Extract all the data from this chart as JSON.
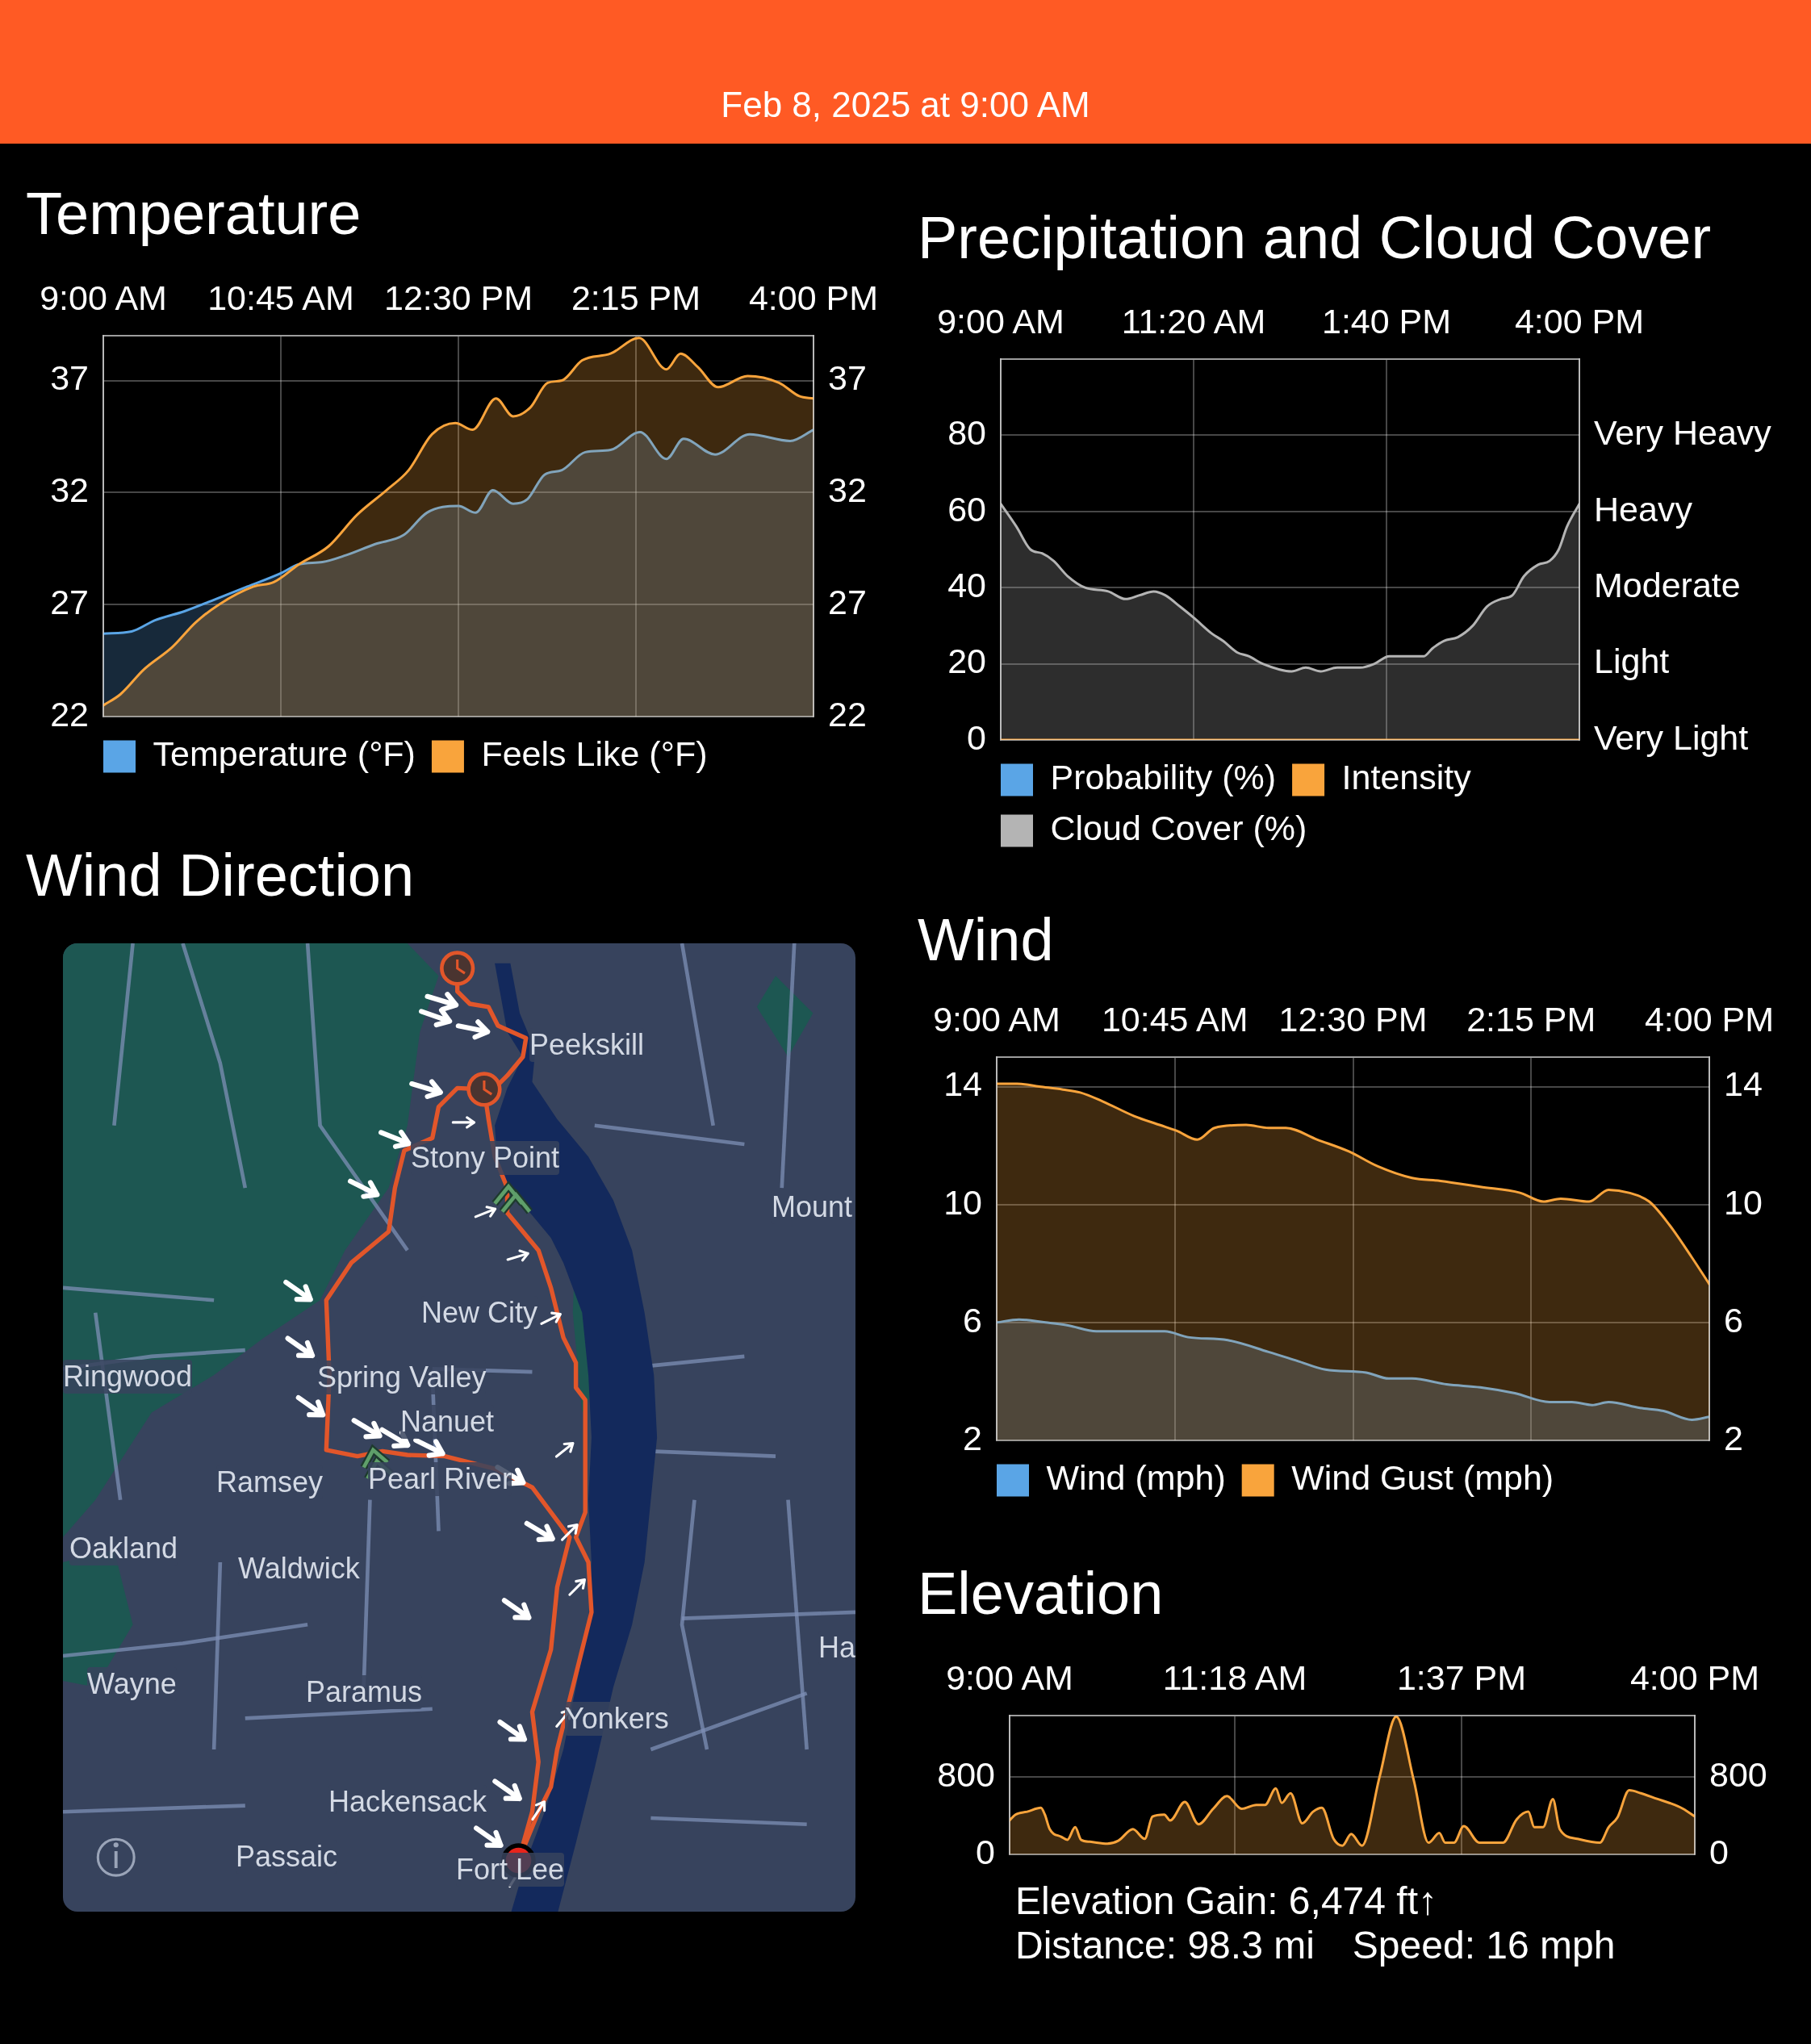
{
  "chart_data": [
    {
      "type": "area",
      "title": "Temperature",
      "subtitle": "Feb 8, 2025 at 9:00 AM",
      "xlim": [
        9,
        16
      ],
      "xticks": [
        {
          "value": 9,
          "label": "9:00 AM"
        },
        {
          "value": 10.75,
          "label": "10:45 AM"
        },
        {
          "value": 12.5,
          "label": "12:30 PM"
        },
        {
          "value": 14.25,
          "label": "2:15 PM"
        },
        {
          "value": 16,
          "label": "4:00 PM"
        }
      ],
      "ylim": [
        22,
        39
      ],
      "yticks": [
        22,
        27,
        32,
        37
      ],
      "y2lim": [
        22,
        39
      ],
      "y2ticks": [
        22,
        27,
        32,
        37
      ],
      "grid": true,
      "legend": "bottom",
      "series": [
        {
          "name": "Temperature (°F)",
          "color": "#5aa5e6",
          "x": [
            9,
            9.28,
            9.51,
            9.8,
            10.14,
            10.42,
            10.75,
            10.93,
            11.16,
            11.39,
            11.68,
            11.96,
            12.19,
            12.5,
            12.67,
            12.84,
            13.04,
            13.18,
            13.35,
            13.52,
            13.75,
            14,
            14.29,
            14.55,
            14.72,
            15.03,
            15.37,
            15.77,
            16
          ],
          "values": [
            25.7,
            25.8,
            26.3,
            26.7,
            27.3,
            27.8,
            28.4,
            28.8,
            28.9,
            29.2,
            29.7,
            30.1,
            31.1,
            31.4,
            31.1,
            32.1,
            31.5,
            31.7,
            32.8,
            33,
            33.8,
            33.9,
            34.7,
            33.5,
            34.4,
            33.7,
            34.6,
            34.3,
            34.8
          ]
        },
        {
          "name": "Feels Like (°F)",
          "color": "#f9a43c",
          "x": [
            9,
            9.17,
            9.4,
            9.68,
            9.91,
            10.14,
            10.48,
            10.68,
            10.93,
            11.22,
            11.5,
            11.79,
            12.01,
            12.24,
            12.47,
            12.64,
            12.87,
            13.04,
            13.21,
            13.38,
            13.52,
            13.72,
            14,
            14.28,
            14.55,
            14.69,
            14.86,
            15.06,
            15.35,
            15.66,
            15.86,
            16
          ],
          "values": [
            22.5,
            23,
            24.1,
            25.1,
            26.2,
            27,
            27.8,
            28,
            28.8,
            29.6,
            31,
            32.1,
            33,
            34.6,
            35.1,
            34.8,
            36.2,
            35.4,
            35.8,
            36.9,
            37,
            37.9,
            38.2,
            38.9,
            37.5,
            38.2,
            37.6,
            36.7,
            37.2,
            36.9,
            36.3,
            36.2
          ]
        }
      ]
    },
    {
      "type": "area",
      "title": "Precipitation and Cloud Cover",
      "xlim": [
        9,
        16
      ],
      "xticks": [
        {
          "value": 9,
          "label": "9:00 AM"
        },
        {
          "value": 11.333,
          "label": "11:20 AM"
        },
        {
          "value": 13.667,
          "label": "1:40 PM"
        },
        {
          "value": 16,
          "label": "4:00 PM"
        }
      ],
      "ylim": [
        0,
        100
      ],
      "yticks": [
        0,
        20,
        40,
        60,
        80
      ],
      "y2_categories": [
        null,
        "Very Heavy",
        "Heavy",
        "Moderate",
        "Light",
        "Very Light"
      ],
      "grid": true,
      "legend": "bottom",
      "series": [
        {
          "name": "Probability (%)",
          "type": "line",
          "color": "#5aa5e6"
        },
        {
          "name": "Intensity",
          "type": "line",
          "color": "#f9a43c",
          "x": [
            9,
            16
          ],
          "values": [
            0,
            0
          ]
        },
        {
          "name": "Cloud Cover (%)",
          "color": "#b4b4b4",
          "x": [
            9,
            9.19,
            9.36,
            9.5,
            9.64,
            9.81,
            10.02,
            10.3,
            10.51,
            10.68,
            10.85,
            10.99,
            11.17,
            11.34,
            11.55,
            11.69,
            11.86,
            12,
            12.17,
            12.52,
            12.69,
            12.87,
            13.07,
            13.35,
            13.52,
            13.7,
            13.91,
            14.12,
            14.22,
            14.36,
            14.53,
            14.71,
            14.88,
            15.05,
            15.19,
            15.33,
            15.5,
            15.64,
            15.75,
            15.85,
            16
          ],
          "values": [
            62,
            56,
            50,
            49,
            47,
            43,
            40,
            39,
            37,
            38,
            39,
            38,
            35,
            32,
            28,
            26,
            23,
            22,
            20,
            18,
            19,
            18,
            19,
            19,
            20,
            22,
            22,
            22,
            24,
            26,
            27,
            30,
            35,
            37,
            38,
            43,
            46,
            47,
            50,
            56,
            62
          ]
        }
      ]
    },
    {
      "type": "other",
      "title": "Wind Direction",
      "annotations": [
        "Peekskill",
        "Stony Point",
        "Mount",
        "New City",
        "Ringwood",
        "Spring Valley",
        "Nanuet",
        "Ramsey",
        "Pearl River",
        "Oakland",
        "Waldwick",
        "Ha",
        "Wayne",
        "Paramus",
        "Yonkers",
        "Hackensack",
        "Passaic",
        "Fort Lee"
      ]
    },
    {
      "type": "area",
      "title": "Wind",
      "xlim": [
        9,
        16
      ],
      "xticks": [
        {
          "value": 9,
          "label": "9:00 AM"
        },
        {
          "value": 10.75,
          "label": "10:45 AM"
        },
        {
          "value": 12.5,
          "label": "12:30 PM"
        },
        {
          "value": 14.25,
          "label": "2:15 PM"
        },
        {
          "value": 16,
          "label": "4:00 PM"
        }
      ],
      "ylim": [
        2,
        15
      ],
      "yticks": [
        2,
        6,
        10,
        14
      ],
      "y2lim": [
        2,
        15
      ],
      "y2ticks": [
        2,
        6,
        10,
        14
      ],
      "grid": true,
      "legend": "bottom",
      "series": [
        {
          "name": "Wind (mph)",
          "color": "#5aa5e6",
          "x": [
            9,
            9.22,
            9.48,
            9.7,
            9.98,
            10.43,
            10.65,
            10.88,
            11.27,
            11.67,
            11.95,
            12.23,
            12.63,
            12.85,
            13.08,
            13.42,
            13.75,
            14.09,
            14.43,
            14.65,
            14.85,
            15.01,
            15.32,
            15.55,
            15.83,
            16
          ],
          "values": [
            6,
            6.1,
            6,
            5.9,
            5.7,
            5.7,
            5.7,
            5.5,
            5.4,
            5,
            4.7,
            4.4,
            4.3,
            4.1,
            4.1,
            3.9,
            3.8,
            3.6,
            3.3,
            3.3,
            3.2,
            3.3,
            3.1,
            3,
            2.7,
            2.8
          ]
        },
        {
          "name": "Wind Gust (mph)",
          "color": "#f9a43c",
          "x": [
            9,
            9.2,
            9.42,
            9.65,
            9.82,
            10.04,
            10.35,
            10.6,
            10.77,
            10.97,
            11.14,
            11.45,
            11.67,
            11.84,
            12.15,
            12.46,
            12.74,
            13.08,
            13.36,
            13.75,
            14.14,
            14.37,
            14.54,
            14.82,
            15.01,
            15.21,
            15.41,
            15.61,
            15.83,
            16
          ],
          "values": [
            14.1,
            14.1,
            14,
            13.9,
            13.8,
            13.5,
            13,
            12.7,
            12.5,
            12.2,
            12.6,
            12.7,
            12.6,
            12.6,
            12.2,
            11.8,
            11.3,
            10.9,
            10.8,
            10.6,
            10.4,
            10.1,
            10.2,
            10.1,
            10.5,
            10.4,
            10.1,
            9.3,
            8.2,
            7.3
          ]
        }
      ]
    },
    {
      "type": "area",
      "title": "Elevation",
      "xlim": [
        9,
        16
      ],
      "xticks": [
        {
          "value": 9,
          "label": "9:00 AM"
        },
        {
          "value": 11.3,
          "label": "11:18 AM"
        },
        {
          "value": 13.617,
          "label": "1:37 PM"
        },
        {
          "value": 16,
          "label": "4:00 PM"
        }
      ],
      "ylim": [
        0,
        1430
      ],
      "yticks": [
        0,
        800
      ],
      "y2lim": [
        0,
        1430
      ],
      "y2ticks": [
        0,
        800
      ],
      "grid": true,
      "annotations": [
        "Elevation Gain: 6,474 ft↑",
        "Distance: 98.3 mi",
        "Speed: 16 mph"
      ],
      "series": [
        {
          "color": "#f9a43c",
          "x": [
            9,
            9.06,
            9.18,
            9.32,
            9.36,
            9.41,
            9.53,
            9.59,
            9.67,
            9.73,
            9.82,
            10,
            10.11,
            10.26,
            10.38,
            10.46,
            10.58,
            10.64,
            10.79,
            10.93,
            11.08,
            11.22,
            11.37,
            11.52,
            11.61,
            11.72,
            11.78,
            11.87,
            11.99,
            12.1,
            12.19,
            12.31,
            12.4,
            12.49,
            12.6,
            12.78,
            12.95,
            13.13,
            13.28,
            13.39,
            13.45,
            13.54,
            13.64,
            13.8,
            14.04,
            14.18,
            14.3,
            14.36,
            14.45,
            14.55,
            14.62,
            14.8,
            15.03,
            15.12,
            15.21,
            15.33,
            15.45,
            15.62,
            15.74,
            15.88,
            16
          ],
          "values": [
            350,
            410,
            440,
            480,
            410,
            260,
            180,
            150,
            280,
            150,
            130,
            110,
            140,
            260,
            160,
            390,
            410,
            350,
            540,
            310,
            470,
            600,
            470,
            510,
            510,
            680,
            530,
            630,
            320,
            440,
            480,
            160,
            90,
            210,
            90,
            800,
            1420,
            760,
            120,
            220,
            120,
            120,
            290,
            120,
            120,
            360,
            440,
            280,
            280,
            570,
            260,
            160,
            120,
            280,
            380,
            660,
            630,
            570,
            530,
            470,
            390
          ]
        }
      ]
    }
  ]
}
